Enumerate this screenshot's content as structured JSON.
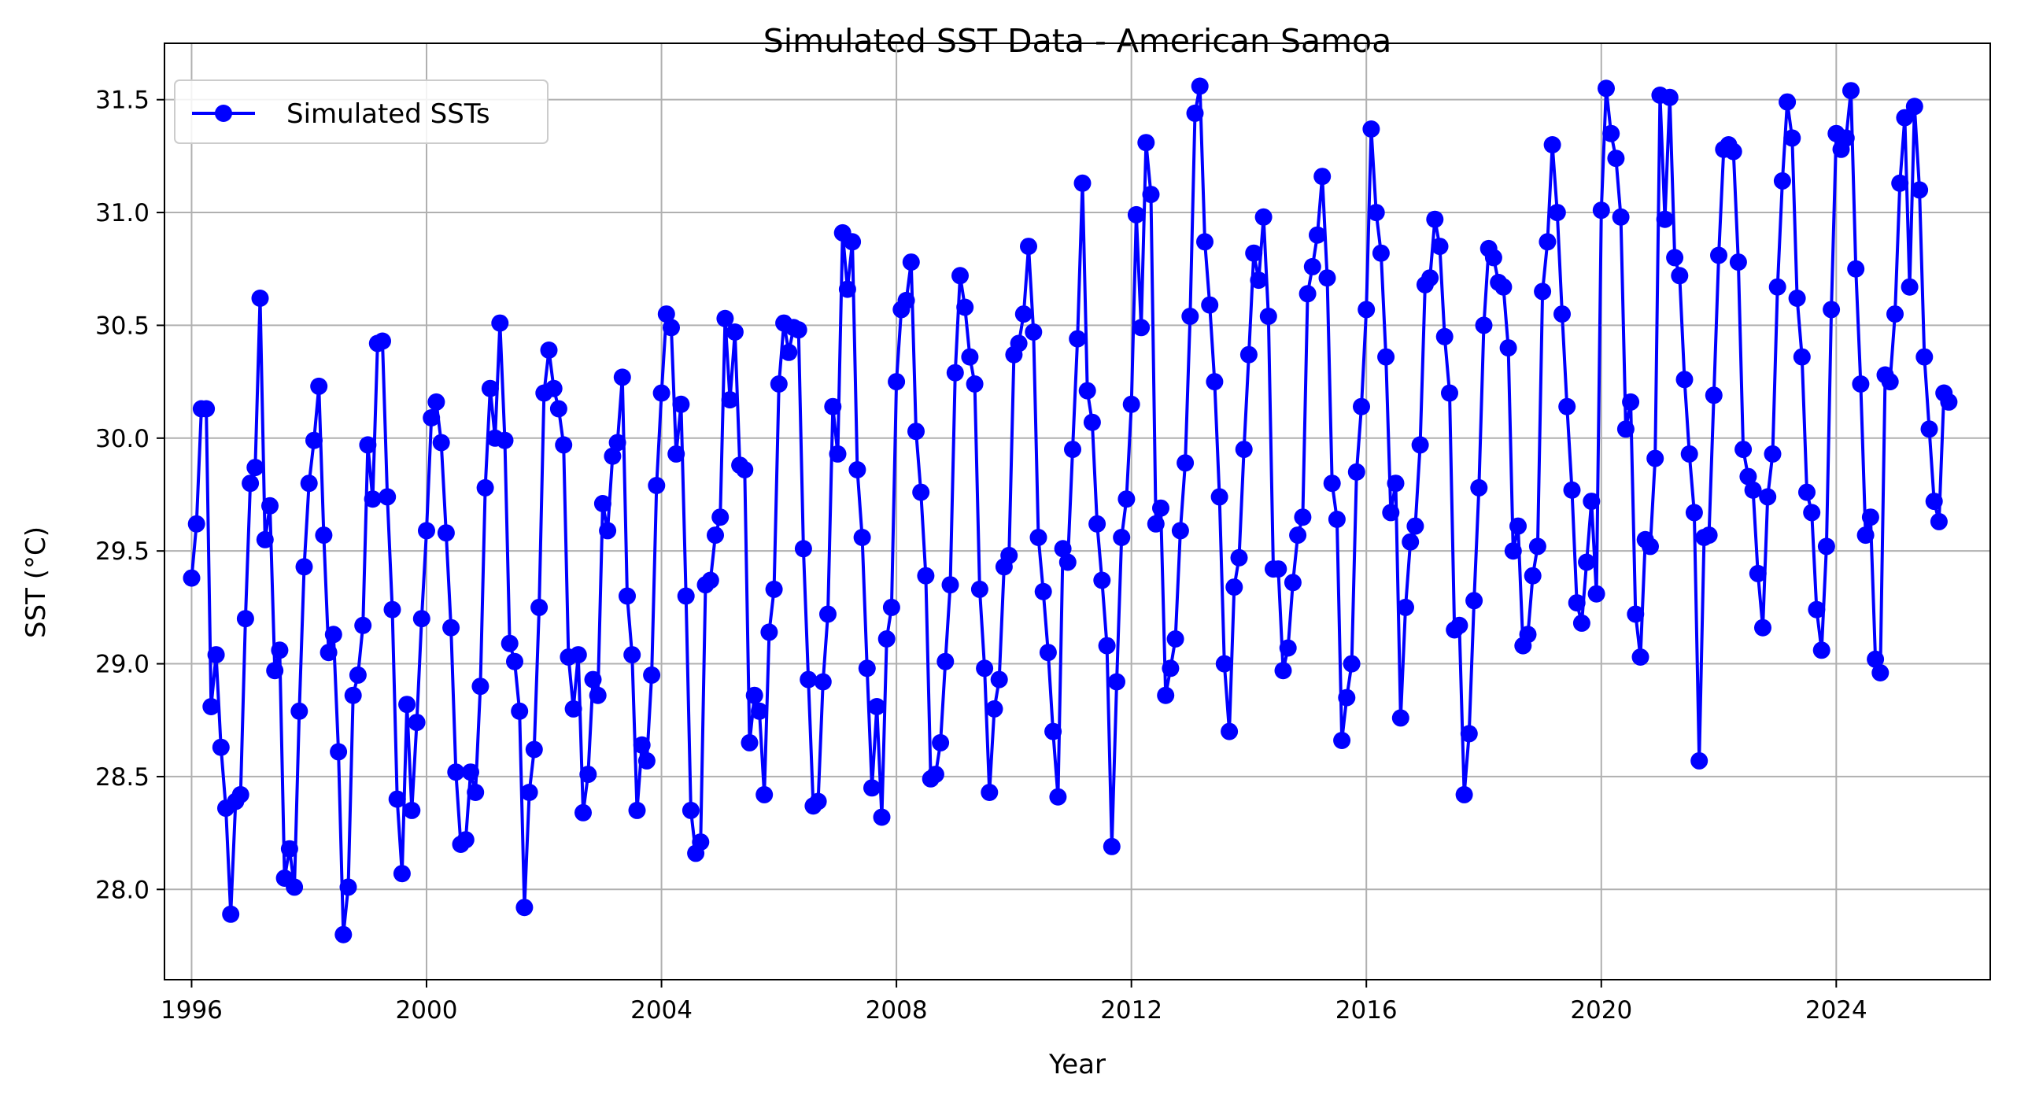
{
  "chart_data": {
    "type": "line",
    "title": "Simulated SST Data - American Samoa",
    "xlabel": "Year",
    "ylabel": "SST (°C)",
    "x_ticks": [
      "1996",
      "2000",
      "2004",
      "2008",
      "2012",
      "2016",
      "2020",
      "2024"
    ],
    "y_ticks": [
      "28.0",
      "28.5",
      "29.0",
      "29.5",
      "30.0",
      "30.5",
      "31.0",
      "31.5"
    ],
    "xlim": [
      "1995-07-15",
      "2026-08-15"
    ],
    "ylim": [
      27.6,
      31.75
    ],
    "grid": true,
    "legend_position": "top-left",
    "marker": "circle",
    "color": "#0000ff",
    "x_start": "1996-01",
    "x_step": "1 month",
    "series": [
      {
        "name": "Simulated SSTs",
        "values": [
          29.38,
          29.62,
          30.13,
          30.13,
          28.81,
          29.04,
          28.63,
          28.36,
          27.89,
          28.39,
          28.42,
          29.2,
          29.8,
          29.87,
          30.62,
          29.55,
          29.7,
          28.97,
          29.06,
          28.05,
          28.18,
          28.01,
          28.79,
          29.43,
          29.8,
          29.99,
          30.23,
          29.57,
          29.05,
          29.13,
          28.61,
          27.8,
          28.01,
          28.86,
          28.95,
          29.17,
          29.97,
          29.73,
          30.42,
          30.43,
          29.74,
          29.24,
          28.4,
          28.07,
          28.82,
          28.35,
          28.74,
          29.2,
          29.59,
          30.09,
          30.16,
          29.98,
          29.58,
          29.16,
          28.52,
          28.2,
          28.22,
          28.52,
          28.43,
          28.9,
          29.78,
          30.22,
          30.0,
          30.51,
          29.99,
          29.09,
          29.01,
          28.79,
          27.92,
          28.43,
          28.62,
          29.25,
          30.2,
          30.39,
          30.22,
          30.13,
          29.97,
          29.03,
          28.8,
          29.04,
          28.34,
          28.51,
          28.93,
          28.86,
          29.71,
          29.59,
          29.92,
          29.98,
          30.27,
          29.3,
          29.04,
          28.35,
          28.64,
          28.57,
          28.95,
          29.79,
          30.2,
          30.55,
          30.49,
          29.93,
          30.15,
          29.3,
          28.35,
          28.16,
          28.21,
          29.35,
          29.37,
          29.57,
          29.65,
          30.53,
          30.17,
          30.47,
          29.88,
          29.86,
          28.65,
          28.86,
          28.79,
          28.42,
          29.14,
          29.33,
          30.24,
          30.51,
          30.38,
          30.49,
          30.48,
          29.51,
          28.93,
          28.37,
          28.39,
          28.92,
          29.22,
          30.14,
          29.93,
          30.91,
          30.66,
          30.87,
          29.86,
          29.56,
          28.98,
          28.45,
          28.81,
          28.32,
          29.11,
          29.25,
          30.25,
          30.57,
          30.61,
          30.78,
          30.03,
          29.76,
          29.39,
          28.49,
          28.51,
          28.65,
          29.01,
          29.35,
          30.29,
          30.72,
          30.58,
          30.36,
          30.24,
          29.33,
          28.98,
          28.43,
          28.8,
          28.93,
          29.43,
          29.48,
          30.37,
          30.42,
          30.55,
          30.85,
          30.47,
          29.56,
          29.32,
          29.05,
          28.7,
          28.41,
          29.51,
          29.45,
          29.95,
          30.44,
          31.13,
          30.21,
          30.07,
          29.62,
          29.37,
          29.08,
          28.19,
          28.92,
          29.56,
          29.73,
          30.15,
          30.99,
          30.49,
          31.31,
          31.08,
          29.62,
          29.69,
          28.86,
          28.98,
          29.11,
          29.59,
          29.89,
          30.54,
          31.44,
          31.56,
          30.87,
          30.59,
          30.25,
          29.74,
          29.0,
          28.7,
          29.34,
          29.47,
          29.95,
          30.37,
          30.82,
          30.7,
          30.98,
          30.54,
          29.42,
          29.42,
          28.97,
          29.07,
          29.36,
          29.57,
          29.65,
          30.64,
          30.76,
          30.9,
          31.16,
          30.71,
          29.8,
          29.64,
          28.66,
          28.85,
          29.0,
          29.85,
          30.14,
          30.57,
          31.37,
          31.0,
          30.82,
          30.36,
          29.67,
          29.8,
          28.76,
          29.25,
          29.54,
          29.61,
          29.97,
          30.68,
          30.71,
          30.97,
          30.85,
          30.45,
          30.2,
          29.15,
          29.17,
          28.42,
          28.69,
          29.28,
          29.78,
          30.5,
          30.84,
          30.8,
          30.69,
          30.67,
          30.4,
          29.5,
          29.61,
          29.08,
          29.13,
          29.39,
          29.52,
          30.65,
          30.87,
          31.3,
          31.0,
          30.55,
          30.14,
          29.77,
          29.27,
          29.18,
          29.45,
          29.72,
          29.31,
          31.01,
          31.55,
          31.35,
          31.24,
          30.98,
          30.04,
          30.16,
          29.22,
          29.03,
          29.55,
          29.52,
          29.91,
          31.52,
          30.97,
          31.51,
          30.8,
          30.72,
          30.26,
          29.93,
          29.67,
          28.57,
          29.56,
          29.57,
          30.19,
          30.81,
          31.28,
          31.3,
          31.27,
          30.78,
          29.95,
          29.83,
          29.77,
          29.4,
          29.16,
          29.74,
          29.93,
          30.67,
          31.14,
          31.49,
          31.33,
          30.62,
          30.36,
          29.76,
          29.67,
          29.24,
          29.06,
          29.52,
          30.57,
          31.35,
          31.28,
          31.33,
          31.54,
          30.75,
          30.24,
          29.57,
          29.65,
          29.02,
          28.96,
          30.28,
          30.25,
          30.55,
          31.13,
          31.42,
          30.67,
          31.47,
          31.1,
          30.36,
          30.04,
          29.72,
          29.63,
          30.2,
          30.16
        ]
      }
    ]
  }
}
